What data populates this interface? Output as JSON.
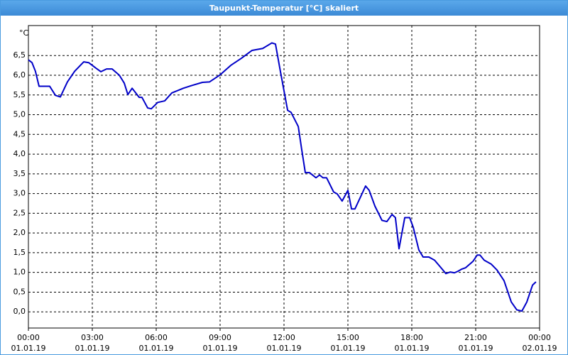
{
  "chart_data": {
    "type": "line",
    "title": "Taupunkt-Temperatur [°C] skaliert",
    "ylabel": "°C",
    "x": [
      0,
      0.17,
      0.33,
      0.5,
      1,
      1.27,
      1.5,
      1.83,
      2.17,
      2.6,
      2.83,
      3.17,
      3.4,
      3.67,
      3.93,
      4.27,
      4.5,
      4.67,
      4.87,
      5.2,
      5.33,
      5.6,
      5.77,
      6.07,
      6.4,
      6.73,
      7.27,
      7.67,
      8.17,
      8.5,
      9,
      9.5,
      10,
      10.5,
      11,
      11.43,
      11.6,
      11.83,
      12.17,
      12.33,
      12.67,
      12.83,
      13,
      13.2,
      13.5,
      13.67,
      13.83,
      14,
      14.33,
      14.5,
      14.73,
      15,
      15.17,
      15.33,
      15.83,
      16,
      16.27,
      16.6,
      16.83,
      17.07,
      17.23,
      17.4,
      17.67,
      17.9,
      18.07,
      18.33,
      18.53,
      18.8,
      19.07,
      19.4,
      19.6,
      19.8,
      20,
      20.17,
      20.33,
      20.53,
      20.87,
      21.07,
      21.2,
      21.4,
      21.73,
      22,
      22.33,
      22.67,
      22.93,
      23.17,
      23.4,
      23.67,
      23.83
    ],
    "series": [
      {
        "color": "#0000c8",
        "values": [
          6.39,
          6.32,
          6.1,
          5.72,
          5.72,
          5.49,
          5.45,
          5.83,
          6.1,
          6.34,
          6.32,
          6.18,
          6.09,
          6.16,
          6.16,
          6.0,
          5.8,
          5.51,
          5.67,
          5.44,
          5.44,
          5.17,
          5.15,
          5.31,
          5.35,
          5.55,
          5.67,
          5.74,
          5.82,
          5.83,
          6.01,
          6.25,
          6.43,
          6.63,
          6.68,
          6.82,
          6.79,
          6.1,
          5.11,
          5.06,
          4.7,
          4.12,
          3.53,
          3.53,
          3.4,
          3.47,
          3.4,
          3.4,
          3.04,
          2.99,
          2.81,
          3.08,
          2.61,
          2.61,
          3.19,
          3.08,
          2.68,
          2.32,
          2.29,
          2.47,
          2.39,
          1.6,
          2.39,
          2.39,
          2.14,
          1.57,
          1.39,
          1.39,
          1.31,
          1.1,
          0.97,
          1.01,
          0.99,
          1.03,
          1.08,
          1.12,
          1.28,
          1.44,
          1.44,
          1.31,
          1.21,
          1.06,
          0.79,
          0.25,
          0.05,
          0.02,
          0.25,
          0.68,
          0.76
        ]
      }
    ],
    "xlim": [
      0,
      24
    ],
    "xticks": [
      {
        "value": 0,
        "label": "00:00\n01.01.19"
      },
      {
        "value": 3,
        "label": "03:00\n01.01.19"
      },
      {
        "value": 6,
        "label": "06:00\n01.01.19"
      },
      {
        "value": 9,
        "label": "09:00\n01.01.19"
      },
      {
        "value": 12,
        "label": "12:00\n01.01.19"
      },
      {
        "value": 15,
        "label": "15:00\n01.01.19"
      },
      {
        "value": 18,
        "label": "18:00\n01.01.19"
      },
      {
        "value": 21,
        "label": "21:00\n01.01.19"
      },
      {
        "value": 24,
        "label": "00:00\n02.01.19"
      }
    ],
    "ylim": [
      -0.41,
      7.26
    ],
    "yticks": [
      {
        "value": 0,
        "label": "0,0"
      },
      {
        "value": 0.5,
        "label": "0,5"
      },
      {
        "value": 1,
        "label": "1,0"
      },
      {
        "value": 1.5,
        "label": "1,5"
      },
      {
        "value": 2,
        "label": "2,0"
      },
      {
        "value": 2.5,
        "label": "2,5"
      },
      {
        "value": 3,
        "label": "3,0"
      },
      {
        "value": 3.5,
        "label": "3,5"
      },
      {
        "value": 4,
        "label": "4,0"
      },
      {
        "value": 4.5,
        "label": "4,5"
      },
      {
        "value": 5,
        "label": "5,0"
      },
      {
        "value": 5.5,
        "label": "5,5"
      },
      {
        "value": 6,
        "label": "6,0"
      },
      {
        "value": 6.5,
        "label": "6,5"
      }
    ],
    "grid": true
  }
}
